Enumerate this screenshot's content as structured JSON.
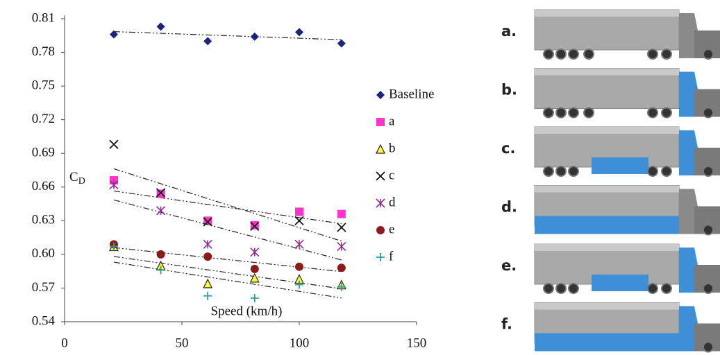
{
  "chart_data": {
    "type": "scatter",
    "x_label": "Speed (km/h)",
    "y_label": {
      "text": "C",
      "subscript": "D"
    },
    "xlim": [
      0,
      150
    ],
    "xticks": [
      0,
      50,
      100,
      150
    ],
    "ylim": [
      0.54,
      0.81
    ],
    "yticks": [
      0.54,
      0.57,
      {
        "value": 0.6,
        "label": "0.60"
      },
      0.63,
      0.66,
      0.69,
      0.72,
      0.75,
      0.78,
      0.81
    ],
    "trend_lines": true,
    "series": [
      {
        "name": "Baseline",
        "color": "#1a237e",
        "marker": "diamond",
        "x": [
          21,
          41,
          61,
          81,
          100,
          118
        ],
        "values": [
          0.796,
          0.803,
          0.79,
          0.794,
          0.798,
          0.788
        ]
      },
      {
        "name": "a",
        "color": "#ff33cc",
        "marker": "square",
        "x": [
          21,
          41,
          61,
          81,
          100,
          118
        ],
        "values": [
          0.666,
          0.654,
          0.63,
          0.626,
          0.638,
          0.636
        ]
      },
      {
        "name": "b",
        "color": "#ffff33",
        "marker": "triangle",
        "x": [
          21,
          41,
          61,
          81,
          100,
          118
        ],
        "values": [
          0.607,
          0.59,
          0.574,
          0.579,
          0.578,
          0.573
        ]
      },
      {
        "name": "c",
        "color": "#111111",
        "marker": "x",
        "x": [
          21,
          41,
          61,
          81,
          100,
          118
        ],
        "values": [
          0.698,
          0.655,
          0.629,
          0.625,
          0.63,
          0.624
        ]
      },
      {
        "name": "d",
        "color": "#8e2a8e",
        "marker": "asterisk",
        "x": [
          21,
          41,
          61,
          81,
          100,
          118
        ],
        "values": [
          0.662,
          0.639,
          0.609,
          0.602,
          0.609,
          0.607
        ]
      },
      {
        "name": "e",
        "color": "#8b1a1a",
        "marker": "circle",
        "x": [
          21,
          41,
          61,
          81,
          100,
          118
        ],
        "values": [
          0.609,
          0.6,
          0.598,
          0.587,
          0.589,
          0.588
        ]
      },
      {
        "name": "f",
        "color": "#2a9d9d",
        "marker": "plus",
        "x": [
          21,
          41,
          61,
          81,
          100,
          118
        ],
        "values": [
          0.607,
          0.586,
          0.563,
          0.561,
          0.573,
          0.571
        ]
      }
    ]
  },
  "panels": [
    {
      "label": "a."
    },
    {
      "label": "b."
    },
    {
      "label": "c."
    },
    {
      "label": "d."
    },
    {
      "label": "e."
    },
    {
      "label": "f."
    }
  ]
}
